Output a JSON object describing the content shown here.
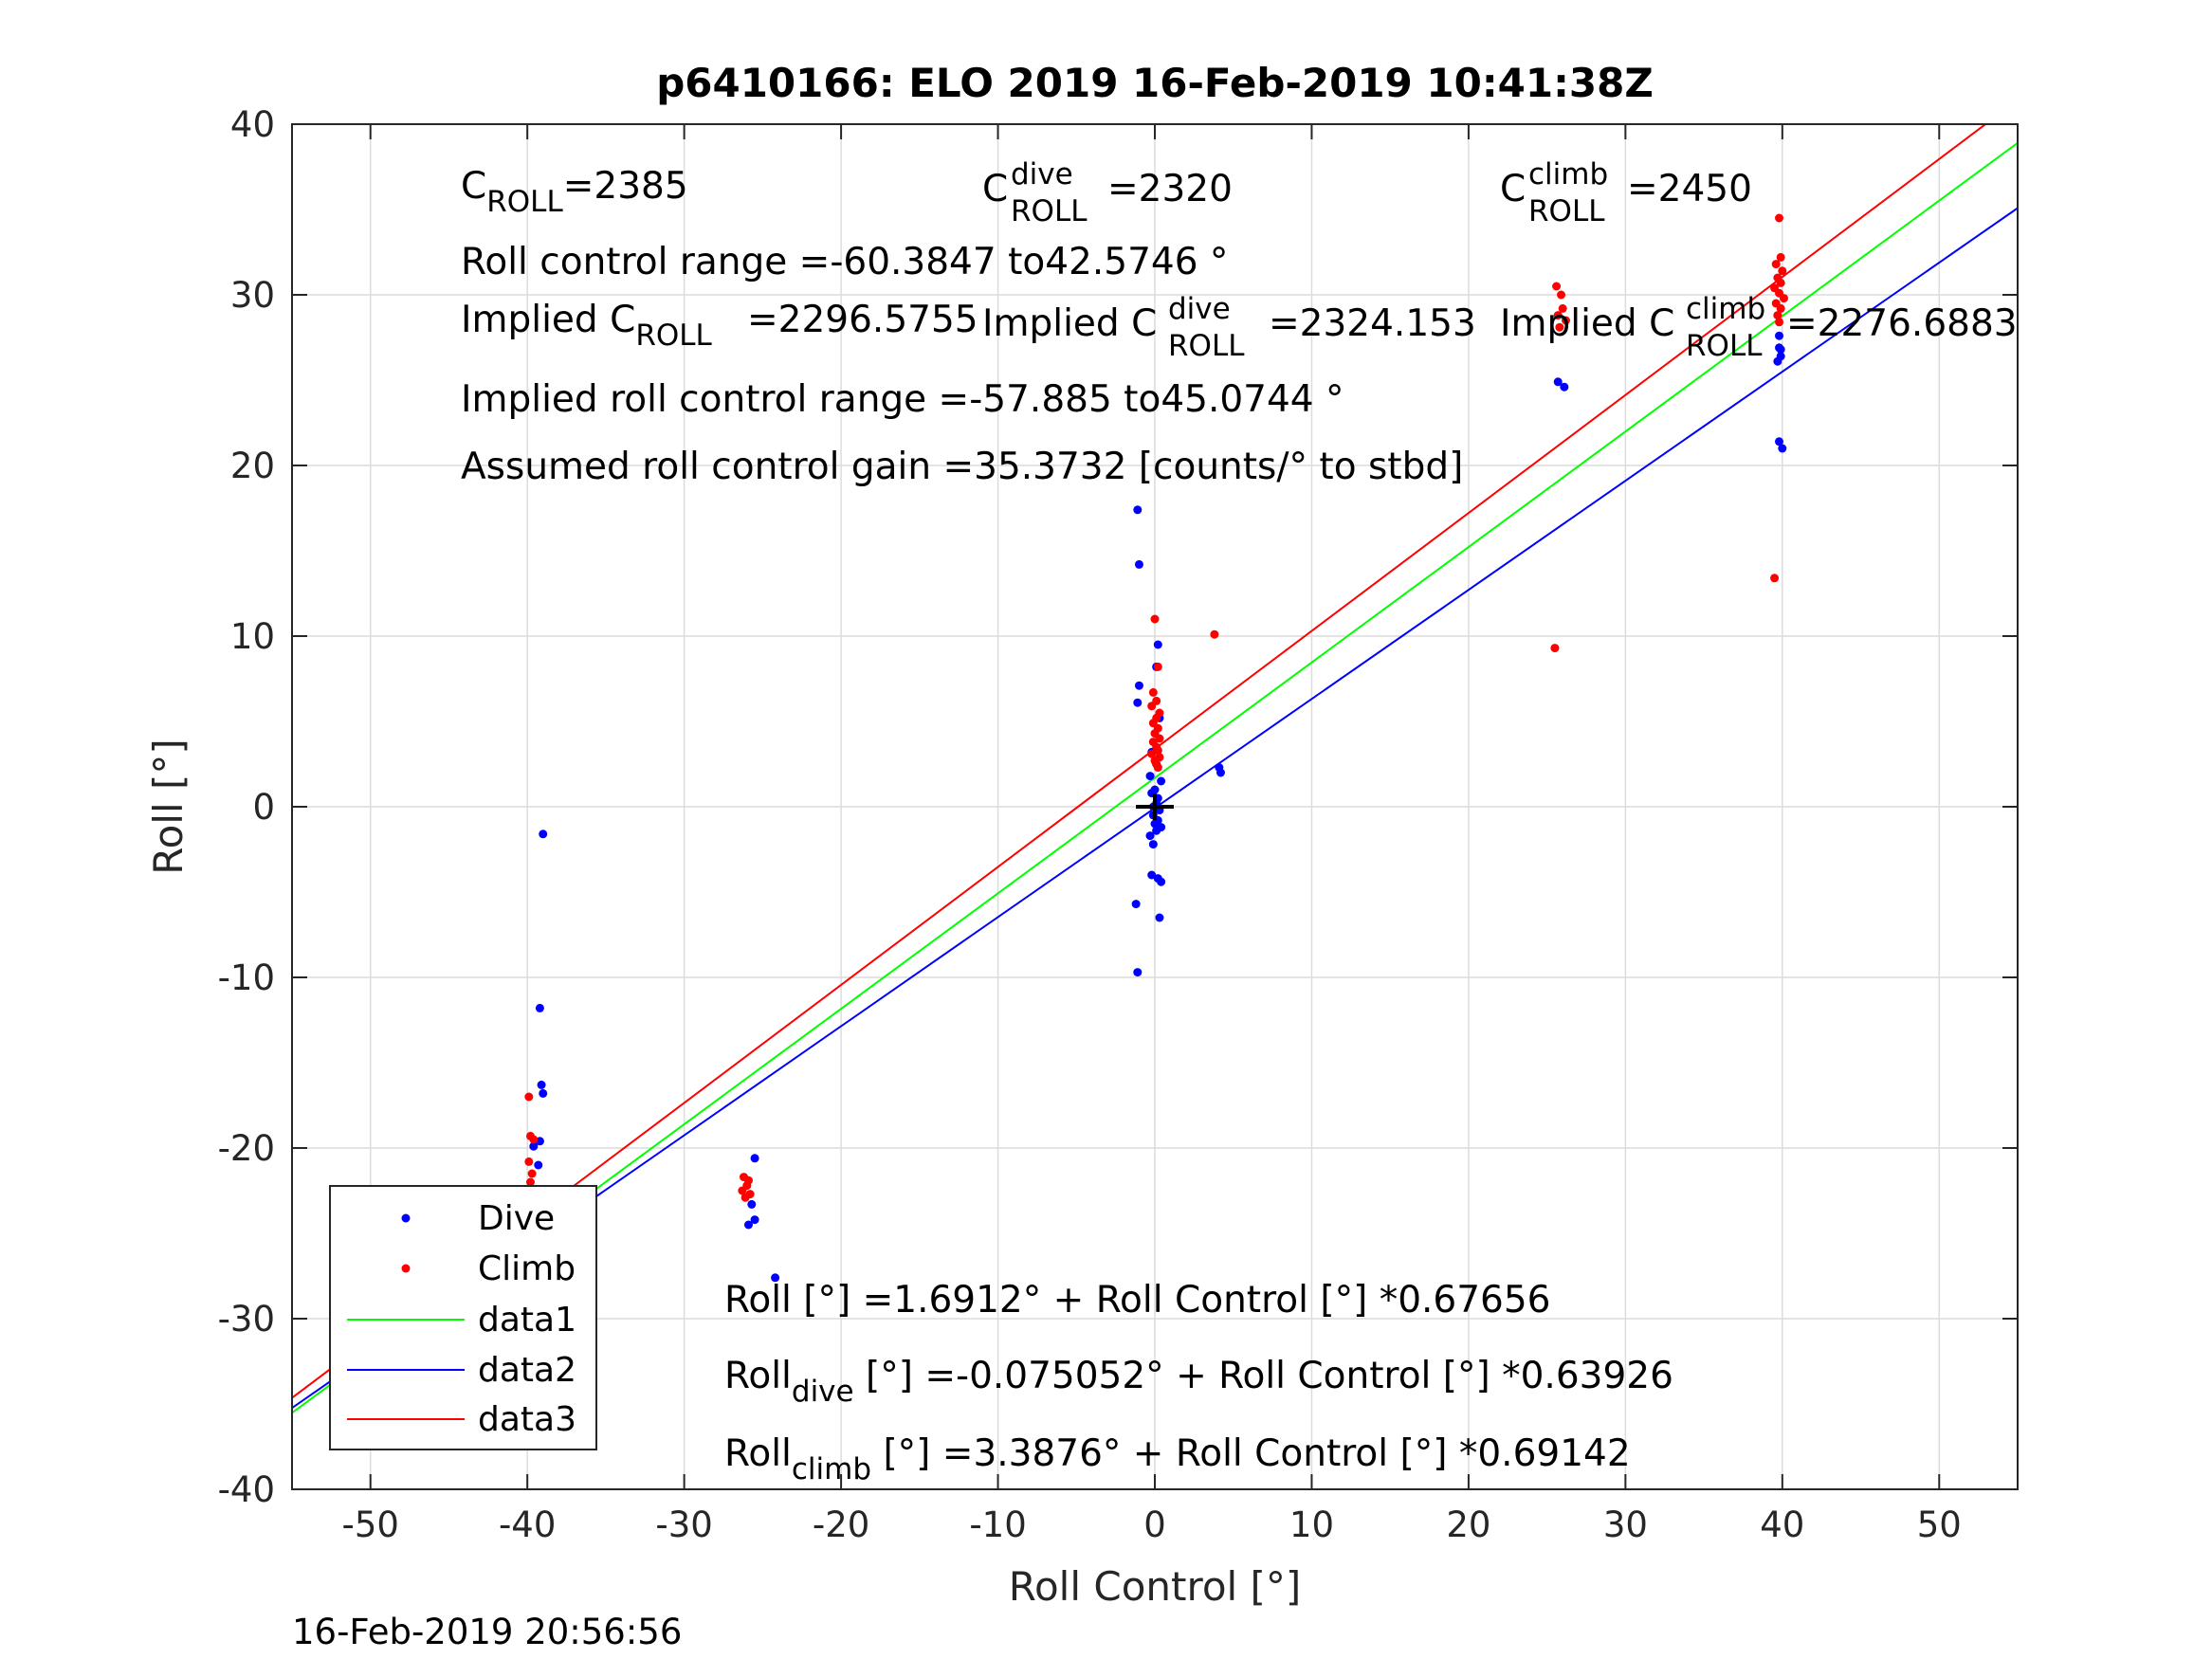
{
  "chart_data": {
    "type": "scatter",
    "title": "p6410166: ELO 2019 16-Feb-2019 10:41:38Z",
    "xlabel": "Roll Control [°]",
    "ylabel": "Roll [°]",
    "xlim": [
      -55,
      55
    ],
    "ylim": [
      -40,
      40
    ],
    "xticks": [
      -50,
      -40,
      -30,
      -20,
      -10,
      0,
      10,
      20,
      30,
      40,
      50
    ],
    "yticks": [
      -40,
      -30,
      -20,
      -10,
      0,
      10,
      20,
      30,
      40
    ],
    "xtick_labels": [
      "-50",
      "-40",
      "-30",
      "-20",
      "-10",
      "0",
      "10",
      "20",
      "30",
      "40",
      "50"
    ],
    "ytick_labels": [
      "-40",
      "-30",
      "-20",
      "-10",
      "0",
      "10",
      "20",
      "30",
      "40"
    ],
    "grid": true,
    "legend_position": "bottom-left",
    "series": [
      {
        "name": "Dive",
        "kind": "points",
        "color": "#0000ff",
        "points": [
          [
            -39.0,
            -1.6
          ],
          [
            -39.2,
            -11.8
          ],
          [
            -39.1,
            -16.3
          ],
          [
            -39.0,
            -16.8
          ],
          [
            -39.2,
            -19.6
          ],
          [
            -39.6,
            -19.9
          ],
          [
            -39.3,
            -21.0
          ],
          [
            -39.7,
            -24.9
          ],
          [
            -39.5,
            -25.3
          ],
          [
            -39.2,
            -25.7
          ],
          [
            -39.8,
            -26.0
          ],
          [
            -39.4,
            -26.3
          ],
          [
            -39.6,
            -26.6
          ],
          [
            -39.9,
            -26.8
          ],
          [
            -39.3,
            -27.0
          ],
          [
            -39.7,
            -27.2
          ],
          [
            -39.5,
            -26.4
          ],
          [
            -25.5,
            -20.6
          ],
          [
            -25.7,
            -23.3
          ],
          [
            -25.5,
            -24.2
          ],
          [
            -25.9,
            -24.5
          ],
          [
            -24.2,
            -27.6
          ],
          [
            -1.1,
            17.4
          ],
          [
            -1.0,
            14.2
          ],
          [
            -1.0,
            7.1
          ],
          [
            -1.1,
            6.1
          ],
          [
            0.2,
            9.5
          ],
          [
            0.1,
            8.2
          ],
          [
            0.3,
            5.2
          ],
          [
            -0.2,
            3.2
          ],
          [
            0.1,
            2.5
          ],
          [
            -0.3,
            1.8
          ],
          [
            0.4,
            1.5
          ],
          [
            0.0,
            1.0
          ],
          [
            -0.2,
            0.8
          ],
          [
            0.2,
            0.5
          ],
          [
            0.1,
            0.2
          ],
          [
            -0.1,
            0.0
          ],
          [
            0.3,
            -0.2
          ],
          [
            -0.1,
            -0.5
          ],
          [
            0.2,
            -0.8
          ],
          [
            0.0,
            -1.0
          ],
          [
            0.4,
            -1.2
          ],
          [
            0.1,
            -1.4
          ],
          [
            -0.3,
            -1.7
          ],
          [
            -0.1,
            -2.2
          ],
          [
            -0.2,
            -4.0
          ],
          [
            0.2,
            -4.2
          ],
          [
            0.4,
            -4.4
          ],
          [
            -1.2,
            -5.7
          ],
          [
            0.3,
            -6.5
          ],
          [
            -1.1,
            -9.7
          ],
          [
            4.2,
            2.0
          ],
          [
            4.1,
            2.3
          ],
          [
            25.7,
            24.9
          ],
          [
            26.1,
            24.6
          ],
          [
            39.8,
            27.6
          ],
          [
            39.8,
            26.9
          ],
          [
            39.9,
            26.4
          ],
          [
            39.7,
            26.1
          ],
          [
            39.9,
            26.8
          ],
          [
            39.8,
            21.4
          ],
          [
            40.0,
            21.0
          ]
        ]
      },
      {
        "name": "Climb",
        "kind": "points",
        "color": "#ff0000",
        "points": [
          [
            -39.9,
            -17.0
          ],
          [
            -39.8,
            -19.3
          ],
          [
            -39.6,
            -19.5
          ],
          [
            -39.9,
            -20.8
          ],
          [
            -39.7,
            -21.5
          ],
          [
            -39.8,
            -22.0
          ],
          [
            -39.5,
            -22.5
          ],
          [
            -39.9,
            -22.8
          ],
          [
            -39.7,
            -23.1
          ],
          [
            -39.6,
            -23.4
          ],
          [
            -39.8,
            -23.7
          ],
          [
            -39.5,
            -24.0
          ],
          [
            -39.7,
            -24.3
          ],
          [
            -39.9,
            -24.6
          ],
          [
            -26.2,
            -21.7
          ],
          [
            -25.9,
            -21.9
          ],
          [
            -26.0,
            -22.2
          ],
          [
            -26.3,
            -22.5
          ],
          [
            -25.8,
            -22.7
          ],
          [
            -26.1,
            -22.9
          ],
          [
            0.0,
            11.0
          ],
          [
            0.2,
            8.2
          ],
          [
            -0.1,
            6.7
          ],
          [
            0.1,
            6.2
          ],
          [
            -0.2,
            5.9
          ],
          [
            0.3,
            5.5
          ],
          [
            0.1,
            5.2
          ],
          [
            -0.1,
            4.9
          ],
          [
            0.2,
            4.6
          ],
          [
            0.0,
            4.3
          ],
          [
            0.3,
            4.0
          ],
          [
            -0.1,
            3.8
          ],
          [
            0.1,
            3.5
          ],
          [
            0.2,
            3.3
          ],
          [
            -0.2,
            3.1
          ],
          [
            0.3,
            2.9
          ],
          [
            0.0,
            2.7
          ],
          [
            0.1,
            2.5
          ],
          [
            0.2,
            2.3
          ],
          [
            3.8,
            10.1
          ],
          [
            25.6,
            30.5
          ],
          [
            25.9,
            30.0
          ],
          [
            26.0,
            29.2
          ],
          [
            25.7,
            28.8
          ],
          [
            26.2,
            28.5
          ],
          [
            25.8,
            28.1
          ],
          [
            25.5,
            9.3
          ],
          [
            39.8,
            34.5
          ],
          [
            39.9,
            32.2
          ],
          [
            39.6,
            31.8
          ],
          [
            40.0,
            31.4
          ],
          [
            39.7,
            31.0
          ],
          [
            39.9,
            30.7
          ],
          [
            39.5,
            30.4
          ],
          [
            39.8,
            30.1
          ],
          [
            40.1,
            29.8
          ],
          [
            39.6,
            29.5
          ],
          [
            39.9,
            29.2
          ],
          [
            39.7,
            28.8
          ],
          [
            39.8,
            28.4
          ],
          [
            39.5,
            13.4
          ]
        ]
      },
      {
        "name": "data1",
        "kind": "line",
        "color": "#00ff00",
        "intercept": 1.6912,
        "slope": 0.67656,
        "x": [
          -55,
          55
        ]
      },
      {
        "name": "data2",
        "kind": "line",
        "color": "#0000ff",
        "intercept": -0.075052,
        "slope": 0.63926,
        "x": [
          -55,
          55
        ]
      },
      {
        "name": "data3",
        "kind": "line",
        "color": "#ff0000",
        "intercept": 3.3876,
        "slope": 0.69142,
        "x": [
          -55,
          55
        ]
      }
    ],
    "center_marker": [
      0,
      0
    ],
    "annotations": {
      "c_roll": {
        "base": "C",
        "sub": "ROLL",
        "value": "=2385"
      },
      "c_roll_dive": {
        "base": "C",
        "sup": "dive",
        "sub": "ROLL",
        "value": "=2320"
      },
      "c_roll_climb": {
        "base": "C",
        "sup": "climb",
        "sub": "ROLL",
        "value": "=2450"
      },
      "roll_control_range": "Roll control range =-60.3847 to42.5746 °",
      "implied_c_roll": {
        "prefix": "Implied C",
        "sub": "ROLL",
        "value": "=2296.5755"
      },
      "implied_c_roll_dive": {
        "prefix": "Implied C",
        "sup": "dive",
        "sub": "ROLL",
        "value": "=2324.153"
      },
      "implied_c_roll_climb": {
        "prefix": "Implied C",
        "sup": "climb",
        "sub": "ROLL",
        "value": "=2276.6883"
      },
      "implied_range": "Implied roll control range =-57.885 to45.0744 °",
      "gain": "Assumed roll control gain =35.3732 [counts/° to stbd]",
      "fit_all": "Roll [°] =1.6912° + Roll Control [°] *0.67656",
      "fit_dive": {
        "prefix": "Roll",
        "sub": "dive",
        "rest": " [°] =-0.075052° + Roll Control [°] *0.63926"
      },
      "fit_climb": {
        "prefix": "Roll",
        "sub": "climb",
        "rest": " [°] =3.3876° + Roll Control [°] *0.69142"
      }
    }
  },
  "timestamp": "16-Feb-2019 20:56:56"
}
